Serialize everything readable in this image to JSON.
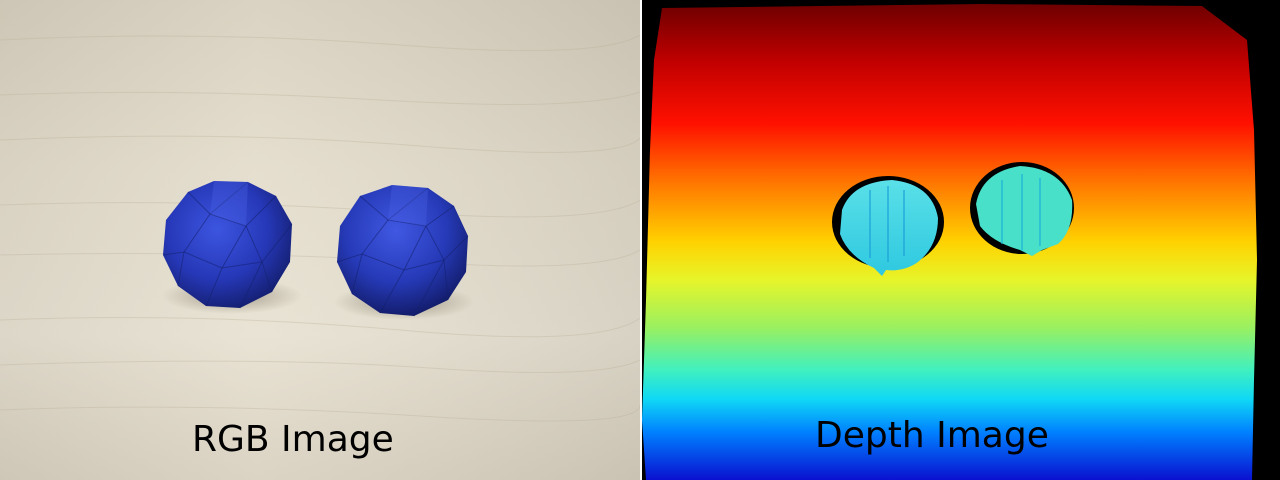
{
  "panels": {
    "rgb": {
      "caption": "RGB Image"
    },
    "depth": {
      "caption": "Depth Image"
    }
  },
  "colors": {
    "table_wood": "#e3dccb",
    "ball_blue": "#2a3fbf",
    "depth_near": "#1020e0",
    "depth_mid": "#e8f020",
    "depth_far": "#d00000",
    "object_depth": "#40d8e8"
  }
}
